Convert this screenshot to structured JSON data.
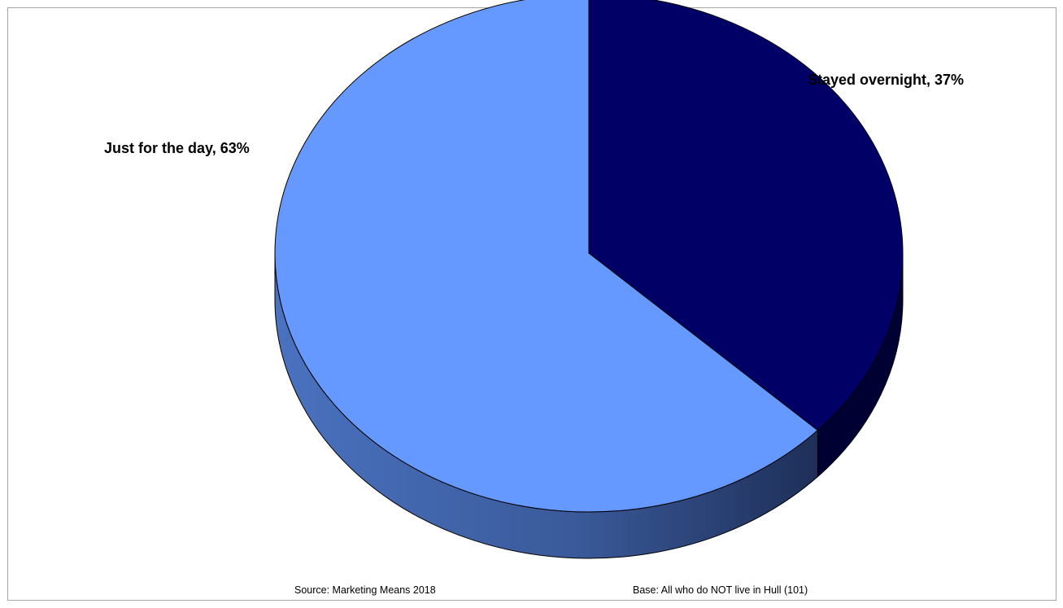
{
  "chart_data": {
    "type": "pie",
    "title": "",
    "slices": [
      {
        "label": "Stayed overnight",
        "value": 37,
        "color": "#000066",
        "side_color": "#000033"
      },
      {
        "label": "Just for the day",
        "value": 63,
        "color": "#6699ff",
        "side_color": "#3d63b0"
      }
    ],
    "data_labels": [
      "Stayed overnight, 37%",
      "Just for the day, 63%"
    ],
    "legend": "none",
    "three_d": true
  },
  "footer": {
    "source": "Source: Marketing Means 2018",
    "base": "Base: All who do NOT live in Hull (101)"
  }
}
